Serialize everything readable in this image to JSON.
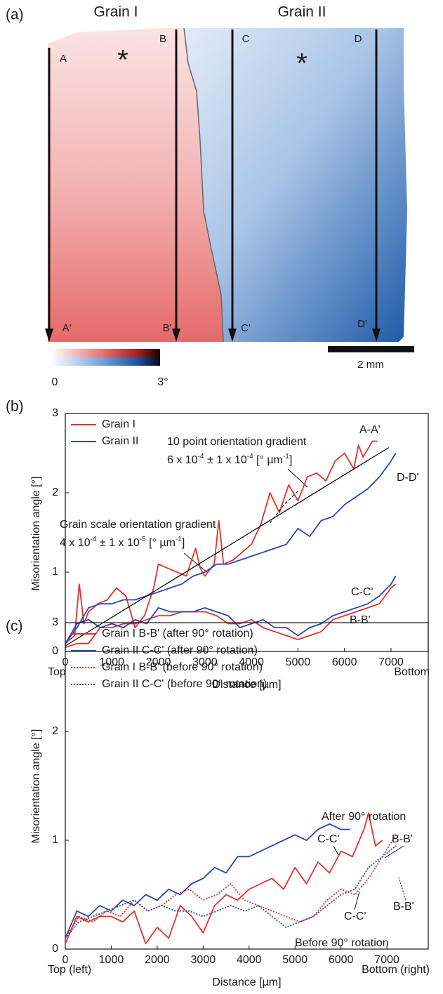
{
  "map": {
    "label": "(a)",
    "grains": [
      "Grain I",
      "Grain II"
    ],
    "markers": [
      {
        "text": "*",
        "color": "#e8302a"
      },
      {
        "text": "*",
        "color": "#2a46b8"
      }
    ],
    "profiles": [
      [
        "A",
        "A'"
      ],
      [
        "B",
        "B'"
      ],
      [
        "C",
        "C'"
      ],
      [
        "D",
        "D'"
      ]
    ],
    "colorbar": {
      "lim": [
        0,
        3
      ],
      "ticks": [
        0,
        {
          "value": 3,
          "label": "3°"
        }
      ]
    },
    "scale_bar": "2 mm"
  },
  "chart_data": [
    {
      "type": "line",
      "label": "(b)",
      "xlabel": "Distance [µm]",
      "ylabel": "Misorientation angle [°]",
      "x_end_labels": [
        "Top",
        "Bottom"
      ],
      "xlim": [
        0,
        7800
      ],
      "ylim": [
        0,
        3
      ],
      "xticks": [
        0,
        1000,
        2000,
        3000,
        4000,
        5000,
        6000,
        7000
      ],
      "yticks": [
        0,
        1,
        2,
        3
      ],
      "legend": [
        {
          "name": "Grain I",
          "color": "#e8302a",
          "style": "solid"
        },
        {
          "name": "Grain II",
          "color": "#2a46b8",
          "style": "solid"
        }
      ],
      "series": [
        {
          "label": "A-A'",
          "color": "#e8302a",
          "style": "solid",
          "x": [
            0,
            100,
            200,
            300,
            400,
            500,
            700,
            900,
            1100,
            1300,
            1500,
            1700,
            1900,
            2000,
            2200,
            2400,
            2600,
            2800,
            2900,
            3000,
            3200,
            3300,
            3400,
            3600,
            3800,
            4000,
            4200,
            4400,
            4600,
            4800,
            5000,
            5200,
            5400,
            5600,
            5800,
            6000,
            6200,
            6300,
            6400,
            6600,
            6700
          ],
          "values": [
            0.1,
            0.15,
            0.2,
            0.85,
            0.35,
            0.5,
            0.6,
            0.65,
            0.8,
            0.7,
            0.3,
            0.45,
            0.8,
            1.1,
            1.05,
            1.0,
            0.95,
            1.3,
            1.05,
            0.95,
            1.1,
            1.65,
            1.1,
            1.15,
            1.25,
            1.35,
            1.6,
            2.0,
            1.75,
            2.1,
            1.9,
            2.2,
            2.25,
            2.15,
            2.4,
            2.5,
            2.3,
            2.6,
            2.45,
            2.65,
            2.65
          ]
        },
        {
          "label": "B-B'",
          "color": "#e8302a",
          "style": "solid",
          "x": [
            0,
            250,
            500,
            750,
            1000,
            1250,
            1500,
            1750,
            2000,
            2250,
            2500,
            2750,
            3000,
            3250,
            3500,
            3750,
            4000,
            4250,
            4500,
            4750,
            5000,
            5250,
            5500,
            5750,
            6000,
            6250,
            6500,
            6750,
            7000,
            7100
          ],
          "values": [
            0.05,
            0.1,
            0.1,
            0.3,
            0.3,
            0.35,
            0.35,
            0.4,
            0.45,
            0.45,
            0.5,
            0.5,
            0.5,
            0.45,
            0.35,
            0.35,
            0.4,
            0.3,
            0.25,
            0.2,
            0.15,
            0.2,
            0.25,
            0.4,
            0.45,
            0.5,
            0.55,
            0.6,
            0.8,
            0.85
          ]
        },
        {
          "label": "D-D'",
          "color": "#2a46b8",
          "style": "solid",
          "x": [
            0,
            250,
            500,
            750,
            1000,
            1250,
            1500,
            1750,
            2000,
            2250,
            2500,
            2750,
            3000,
            3250,
            3500,
            3750,
            4000,
            4250,
            4500,
            4750,
            5000,
            5250,
            5500,
            5750,
            6000,
            6250,
            6500,
            6750,
            7000,
            7100
          ],
          "values": [
            0.1,
            0.3,
            0.55,
            0.6,
            0.6,
            0.65,
            0.65,
            0.7,
            0.75,
            0.8,
            0.85,
            0.95,
            1.0,
            1.1,
            1.1,
            1.15,
            1.2,
            1.25,
            1.3,
            1.35,
            1.55,
            1.45,
            1.65,
            1.7,
            1.85,
            1.95,
            2.05,
            2.2,
            2.4,
            2.5
          ]
        },
        {
          "label": "C-C'",
          "color": "#2a46b8",
          "style": "solid",
          "x": [
            0,
            250,
            500,
            750,
            1000,
            1250,
            1500,
            1750,
            2000,
            2250,
            2500,
            2750,
            3000,
            3250,
            3500,
            3750,
            4000,
            4250,
            4500,
            4750,
            5000,
            5250,
            5500,
            5750,
            6000,
            6250,
            6500,
            6750,
            7000,
            7100
          ],
          "values": [
            0.1,
            0.35,
            0.4,
            0.3,
            0.35,
            0.3,
            0.4,
            0.35,
            0.55,
            0.5,
            0.5,
            0.5,
            0.55,
            0.5,
            0.45,
            0.3,
            0.35,
            0.4,
            0.3,
            0.3,
            0.2,
            0.3,
            0.35,
            0.45,
            0.5,
            0.55,
            0.6,
            0.7,
            0.85,
            0.95
          ]
        },
        {
          "color": "#000000",
          "style": "thin",
          "x": [
            0,
            6950
          ],
          "values": [
            0.07,
            2.57
          ]
        },
        {
          "color": "#000000",
          "style": "dashed",
          "x": [
            4400,
            4700,
            5000
          ],
          "values": [
            1.62,
            1.85,
            2.02
          ]
        }
      ],
      "annotations": [
        "10 point orientation gradient",
        [
          "6 x 10",
          "-4",
          " ± 1 x 10",
          "-4",
          " [° µm",
          "-1",
          "]"
        ],
        "Grain scale orientation gradient",
        [
          "4 x 10",
          "-4",
          " ± 1 x 10",
          "-5",
          " [° µm",
          "-1",
          "]"
        ]
      ]
    },
    {
      "type": "line",
      "label": "(c)",
      "xlabel": "Distance [µm]",
      "ylabel": "Misorientation angle [°]",
      "x_end_labels": [
        "Top (left)",
        "Bottom (right)"
      ],
      "xlim": [
        0,
        7900
      ],
      "ylim": [
        0,
        3
      ],
      "xticks": [
        0,
        1000,
        2000,
        3000,
        4000,
        5000,
        6000,
        7000
      ],
      "yticks": [
        0,
        1,
        2,
        3
      ],
      "series": [
        {
          "name": "Grain I B-B' (after 90° rotation)",
          "color": "#e8302a",
          "style": "solid",
          "x": [
            0,
            250,
            500,
            750,
            1000,
            1250,
            1500,
            1750,
            2000,
            2250,
            2500,
            2750,
            3000,
            3250,
            3500,
            3750,
            4000,
            4250,
            4500,
            4750,
            5000,
            5250,
            5500,
            5750,
            6000,
            6250,
            6500,
            6600,
            6750,
            6900
          ],
          "values": [
            0.05,
            0.3,
            0.25,
            0.3,
            0.3,
            0.25,
            0.35,
            0.05,
            0.2,
            0.1,
            0.4,
            0.3,
            0.15,
            0.4,
            0.5,
            0.45,
            0.55,
            0.6,
            0.65,
            0.55,
            0.75,
            0.6,
            0.8,
            0.7,
            0.9,
            0.85,
            1.1,
            1.25,
            0.95,
            1.0
          ]
        },
        {
          "name": "Grain II C-C' (after 90° rotation)",
          "color": "#2a46b8",
          "style": "solid",
          "x": [
            0,
            250,
            500,
            750,
            1000,
            1250,
            1500,
            1750,
            2000,
            2250,
            2500,
            2750,
            3000,
            3250,
            3500,
            3750,
            4000,
            4250,
            4500,
            4750,
            5000,
            5250,
            5500,
            5750,
            6000,
            6200
          ],
          "values": [
            0.1,
            0.35,
            0.3,
            0.4,
            0.35,
            0.45,
            0.4,
            0.5,
            0.45,
            0.55,
            0.5,
            0.6,
            0.65,
            0.75,
            0.7,
            0.85,
            0.85,
            0.9,
            0.95,
            1.0,
            1.05,
            1.0,
            1.1,
            1.15,
            1.1,
            1.1
          ]
        },
        {
          "name": "Grain I B-B' (before 90° rotation)",
          "color": "#e8302a",
          "style": "dotted",
          "x": [
            0,
            300,
            600,
            900,
            1200,
            1500,
            1800,
            2100,
            2400,
            2700,
            3000,
            3300,
            3600,
            3900,
            4200,
            4500,
            4800,
            5100,
            5400,
            5700,
            6000,
            6300,
            6600,
            6900,
            7200
          ],
          "values": [
            0.1,
            0.3,
            0.25,
            0.35,
            0.3,
            0.45,
            0.35,
            0.4,
            0.5,
            0.55,
            0.45,
            0.5,
            0.6,
            0.45,
            0.4,
            0.35,
            0.3,
            0.25,
            0.3,
            0.45,
            0.55,
            0.5,
            0.65,
            0.85,
            1.05
          ]
        },
        {
          "name": "Grain II C-C' (before 90° rotation)",
          "color": "#2a46b8",
          "style": "dotted",
          "x": [
            0,
            300,
            600,
            900,
            1200,
            1500,
            1800,
            2100,
            2400,
            2700,
            3000,
            3300,
            3600,
            3900,
            4200,
            4500,
            4800,
            5100,
            5400,
            5700,
            6000,
            6300,
            6600,
            6900,
            7200
          ],
          "values": [
            0.1,
            0.25,
            0.3,
            0.35,
            0.4,
            0.45,
            0.35,
            0.4,
            0.35,
            0.35,
            0.3,
            0.35,
            0.4,
            0.35,
            0.4,
            0.3,
            0.2,
            0.25,
            0.3,
            0.4,
            0.5,
            0.55,
            0.75,
            0.85,
            0.95
          ]
        }
      ],
      "annotations": [
        "After 90° rotation",
        "C-C'",
        "B-B'",
        "C-C'",
        "B-B'",
        "Before 90° rotation"
      ]
    }
  ]
}
